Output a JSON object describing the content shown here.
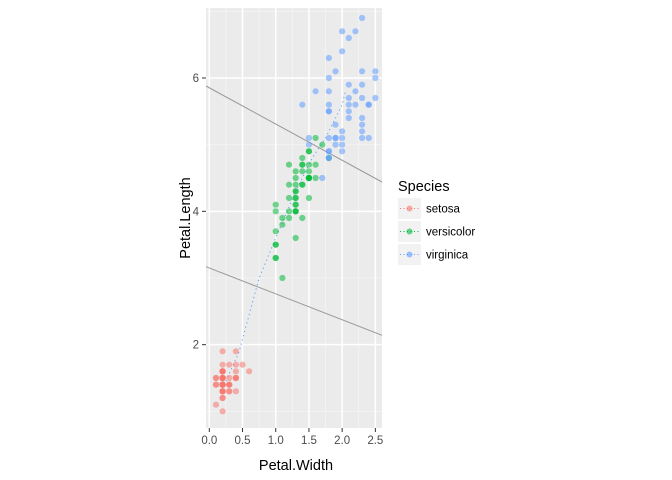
{
  "chart_data": {
    "type": "scatter",
    "title": "",
    "xlabel": "Petal.Width",
    "ylabel": "Petal.Length",
    "xlim": [
      -0.05,
      2.6
    ],
    "ylim": [
      0.75,
      7.05
    ],
    "x_ticks": [
      0.0,
      0.5,
      1.0,
      1.5,
      2.0,
      2.5
    ],
    "x_tick_labels": [
      "0.0",
      "0.5",
      "1.0",
      "1.5",
      "2.0",
      "2.5"
    ],
    "y_ticks": [
      2,
      4,
      6
    ],
    "y_tick_labels": [
      "2",
      "4",
      "6"
    ],
    "grid": true,
    "panel_background": "#ebebeb",
    "legend": {
      "title": "Species",
      "position": "right",
      "entries": [
        {
          "label": "setosa",
          "color": "#f8766d"
        },
        {
          "label": "versicolor",
          "color": "#00ba38"
        },
        {
          "label": "virginica",
          "color": "#619cff"
        }
      ]
    },
    "reference_lines": [
      {
        "name": "upper-boundary",
        "color": "#999999",
        "x": [
          -0.05,
          2.6
        ],
        "y": [
          5.88,
          4.44
        ]
      },
      {
        "name": "lower-boundary",
        "color": "#999999",
        "x": [
          -0.05,
          2.6
        ],
        "y": [
          3.17,
          2.14
        ]
      }
    ],
    "path_line": {
      "name": "species-path",
      "color": "#619cff",
      "style": "dotted",
      "x": [
        0.25,
        0.45,
        0.75,
        1.0,
        1.3,
        1.55,
        1.75,
        2.0,
        2.05
      ],
      "y": [
        1.45,
        1.9,
        3.0,
        3.6,
        4.3,
        4.8,
        5.1,
        5.6,
        5.8
      ]
    },
    "series": [
      {
        "name": "setosa",
        "color": "#f8766d",
        "x": [
          0.2,
          0.2,
          0.2,
          0.2,
          0.2,
          0.4,
          0.3,
          0.2,
          0.2,
          0.1,
          0.2,
          0.2,
          0.1,
          0.1,
          0.2,
          0.4,
          0.4,
          0.3,
          0.3,
          0.3,
          0.2,
          0.4,
          0.2,
          0.5,
          0.2,
          0.2,
          0.4,
          0.2,
          0.2,
          0.2,
          0.2,
          0.4,
          0.1,
          0.2,
          0.2,
          0.2,
          0.2,
          0.1,
          0.2,
          0.2,
          0.3,
          0.3,
          0.2,
          0.6,
          0.4,
          0.3,
          0.2,
          0.2,
          0.2,
          0.2
        ],
        "y": [
          1.4,
          1.4,
          1.3,
          1.5,
          1.4,
          1.7,
          1.4,
          1.5,
          1.4,
          1.5,
          1.5,
          1.6,
          1.4,
          1.1,
          1.2,
          1.5,
          1.3,
          1.4,
          1.7,
          1.5,
          1.7,
          1.5,
          1.0,
          1.7,
          1.9,
          1.6,
          1.6,
          1.5,
          1.4,
          1.6,
          1.6,
          1.5,
          1.5,
          1.4,
          1.5,
          1.2,
          1.3,
          1.4,
          1.3,
          1.5,
          1.3,
          1.3,
          1.3,
          1.6,
          1.9,
          1.4,
          1.6,
          1.4,
          1.5,
          1.4
        ]
      },
      {
        "name": "versicolor",
        "color": "#00ba38",
        "x": [
          1.4,
          1.5,
          1.5,
          1.3,
          1.5,
          1.3,
          1.6,
          1.0,
          1.3,
          1.4,
          1.0,
          1.5,
          1.0,
          1.4,
          1.3,
          1.4,
          1.5,
          1.0,
          1.5,
          1.1,
          1.8,
          1.3,
          1.5,
          1.2,
          1.3,
          1.4,
          1.4,
          1.7,
          1.5,
          1.0,
          1.1,
          1.0,
          1.2,
          1.6,
          1.5,
          1.6,
          1.5,
          1.3,
          1.3,
          1.3,
          1.2,
          1.4,
          1.2,
          1.0,
          1.3,
          1.2,
          1.3,
          1.3,
          1.1,
          1.3
        ],
        "y": [
          4.7,
          4.5,
          4.9,
          4.0,
          4.6,
          4.5,
          4.7,
          3.3,
          4.6,
          3.9,
          3.5,
          4.2,
          4.0,
          4.7,
          3.6,
          4.4,
          4.5,
          4.1,
          4.5,
          3.9,
          4.8,
          4.0,
          4.9,
          4.7,
          4.3,
          4.4,
          4.8,
          5.0,
          4.5,
          3.5,
          3.8,
          3.7,
          3.9,
          5.1,
          4.5,
          4.5,
          4.7,
          4.4,
          4.1,
          4.0,
          4.4,
          4.6,
          4.0,
          3.3,
          4.2,
          4.2,
          4.2,
          4.3,
          3.0,
          4.1
        ]
      },
      {
        "name": "virginica",
        "color": "#619cff",
        "x": [
          2.5,
          1.9,
          2.1,
          1.8,
          2.2,
          2.1,
          1.7,
          1.8,
          1.8,
          2.5,
          2.0,
          1.9,
          2.1,
          2.0,
          2.4,
          2.3,
          1.8,
          2.2,
          2.3,
          1.5,
          2.3,
          2.0,
          2.0,
          1.8,
          2.1,
          1.8,
          1.8,
          1.8,
          2.1,
          1.6,
          1.9,
          2.0,
          2.2,
          1.5,
          1.4,
          2.3,
          2.4,
          1.8,
          1.8,
          2.1,
          2.4,
          2.3,
          1.9,
          2.3,
          2.5,
          2.3,
          1.9,
          2.0,
          2.3,
          1.8
        ],
        "y": [
          6.0,
          5.1,
          5.9,
          5.6,
          5.8,
          6.6,
          4.5,
          6.3,
          5.8,
          6.1,
          5.1,
          5.3,
          5.5,
          5.0,
          5.1,
          5.3,
          5.5,
          6.7,
          6.9,
          5.0,
          5.7,
          4.9,
          6.7,
          4.9,
          5.7,
          6.0,
          4.8,
          4.9,
          5.6,
          5.8,
          6.1,
          6.4,
          5.6,
          5.1,
          5.6,
          6.1,
          5.6,
          5.5,
          4.8,
          5.4,
          5.6,
          5.1,
          5.1,
          5.9,
          5.7,
          5.2,
          5.0,
          5.2,
          5.4,
          5.1
        ]
      }
    ]
  }
}
